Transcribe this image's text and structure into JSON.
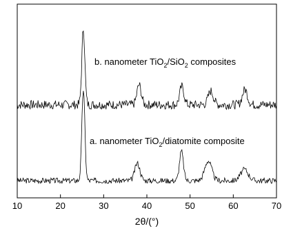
{
  "chart_data": {
    "type": "line",
    "title": "",
    "xlabel": "2θ/(°)",
    "ylabel": "",
    "xlim": [
      10,
      70
    ],
    "xticks": [
      10,
      20,
      30,
      40,
      50,
      60,
      70
    ],
    "yticks": [],
    "grid": false,
    "legend": "none",
    "series": [
      {
        "name": "b. nanometer TiO2/SiO2 composites",
        "label_parts": [
          "b. nanometer TiO",
          "2",
          "/SiO",
          "2",
          " composites"
        ],
        "color": "#000000",
        "offset": 1,
        "peaks": [
          {
            "x": 25.3,
            "height": 1.0,
            "width": 0.35
          },
          {
            "x": 38.2,
            "height": 0.26,
            "width": 0.5
          },
          {
            "x": 48.1,
            "height": 0.24,
            "width": 0.5
          },
          {
            "x": 54.8,
            "height": 0.18,
            "width": 0.6
          },
          {
            "x": 62.7,
            "height": 0.2,
            "width": 0.6
          }
        ],
        "noise": 0.12,
        "seed": 7
      },
      {
        "name": "a. nanometer TiO2/diatomite composite",
        "label_parts": [
          "a. nanometer TiO",
          "2",
          "/diatomite composite"
        ],
        "color": "#000000",
        "offset": 0,
        "peaks": [
          {
            "x": 25.3,
            "height": 1.15,
            "width": 0.35
          },
          {
            "x": 37.8,
            "height": 0.22,
            "width": 0.6
          },
          {
            "x": 48.0,
            "height": 0.37,
            "width": 0.45
          },
          {
            "x": 54.2,
            "height": 0.25,
            "width": 0.8
          },
          {
            "x": 62.6,
            "height": 0.14,
            "width": 0.9
          }
        ],
        "noise": 0.07,
        "seed": 3
      }
    ]
  }
}
